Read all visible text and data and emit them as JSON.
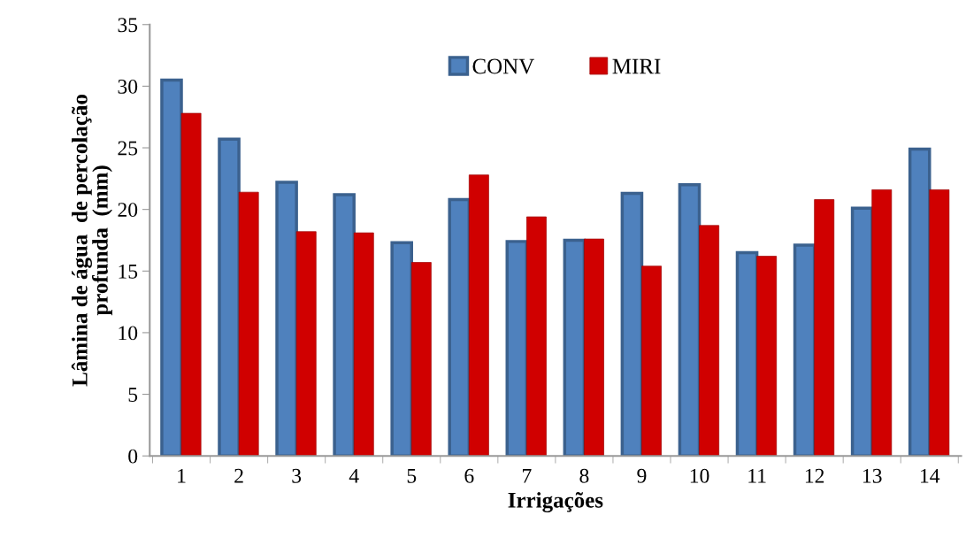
{
  "chart_data": {
    "type": "bar",
    "xlabel": "Irrigações",
    "ylabel": "Lâmina de água  de percolação\nprofunda  (mm)",
    "categories": [
      "1",
      "2",
      "3",
      "4",
      "5",
      "6",
      "7",
      "8",
      "9",
      "10",
      "11",
      "12",
      "13",
      "14"
    ],
    "series": [
      {
        "name": "CONV",
        "color": "#4f81bd",
        "values": [
          30.5,
          25.7,
          22.2,
          21.2,
          17.3,
          20.8,
          17.4,
          17.5,
          21.3,
          22.0,
          16.5,
          17.1,
          20.1,
          24.9
        ]
      },
      {
        "name": "MIRI",
        "color": "#d00000",
        "values": [
          27.8,
          21.4,
          18.2,
          18.1,
          15.7,
          22.8,
          19.4,
          17.6,
          15.4,
          18.7,
          16.2,
          20.8,
          21.6,
          21.6
        ]
      }
    ],
    "ylim": [
      0,
      35
    ],
    "yticks": [
      0,
      5,
      10,
      15,
      20,
      25,
      30,
      35
    ],
    "grid": false,
    "legend": "top"
  }
}
